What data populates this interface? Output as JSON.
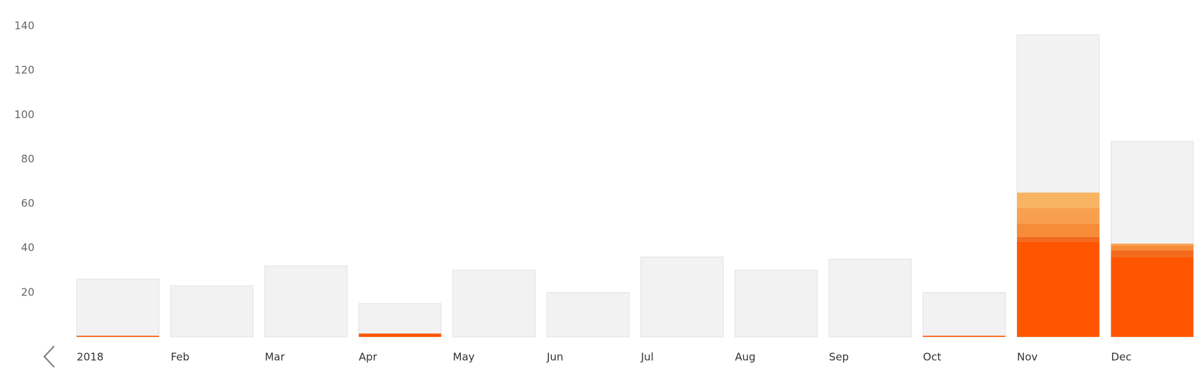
{
  "chart_data": {
    "type": "stacked_bar",
    "categories": [
      "2018",
      "Feb",
      "Mar",
      "Apr",
      "May",
      "Jun",
      "Jul",
      "Aug",
      "Sep",
      "Oct",
      "Nov",
      "Dec"
    ],
    "totals": {
      "color": "#f2f2f2",
      "values": [
        26,
        23,
        32,
        15,
        30,
        20,
        36,
        30,
        35,
        20,
        136,
        88
      ]
    },
    "series": [
      {
        "color": "#ff5500",
        "values": [
          0.5,
          0,
          0,
          1.5,
          0,
          0,
          0,
          0,
          0,
          0.5,
          43,
          36
        ]
      },
      {
        "color": "#f26b1d",
        "values": [
          0,
          0,
          0,
          0,
          0,
          0,
          0,
          0,
          0,
          0,
          2,
          3
        ]
      },
      {
        "color": "#f68b38",
        "values": [
          0,
          0,
          0,
          0,
          0,
          0,
          0,
          0,
          0,
          0,
          6,
          2
        ]
      },
      {
        "color": "#f9a04f",
        "values": [
          0,
          0,
          0,
          0,
          0,
          0,
          0,
          0,
          0,
          0,
          7,
          1
        ]
      },
      {
        "color": "#f8b462",
        "values": [
          0,
          0,
          0,
          0,
          0,
          0,
          0,
          0,
          0,
          0,
          7,
          0
        ]
      }
    ],
    "ylim": [
      0,
      140
    ],
    "yticks": [
      20,
      40,
      60,
      80,
      100,
      120,
      140
    ]
  }
}
